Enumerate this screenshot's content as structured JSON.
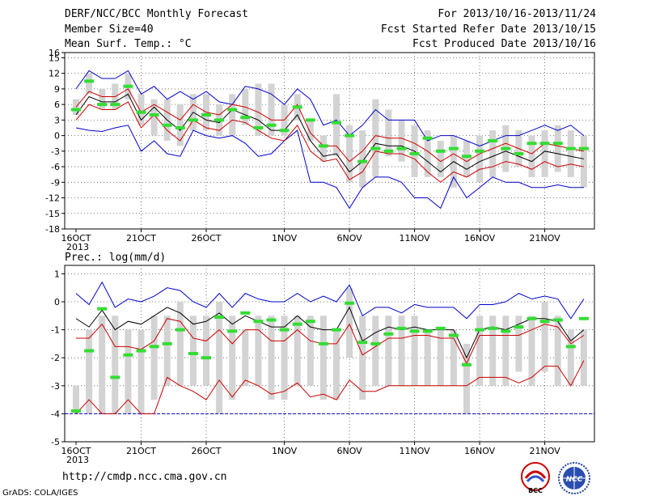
{
  "header": {
    "title": "DERF/NCC/BCC Monthly Forecast",
    "member_size": "Member Size=40",
    "period": "For 2013/10/16-2013/11/24",
    "fcst_started": "Fcst Started Refer Date 2013/10/15",
    "fcst_produced": "Fcst Produced Date 2013/10/16"
  },
  "footer": {
    "url": "http://cmdp.ncc.cma.gov.cn",
    "credit": "GrADS: COLA/IGES",
    "logo_left_text": "BCC",
    "logo_right_text": "NCC"
  },
  "colors": {
    "box": "#d3d3d3",
    "mean": "#000000",
    "upper": "#0000cc",
    "red": "#cc0000",
    "obs": "#33dd33",
    "zero_line": "#0000cc",
    "grid": "#555555"
  },
  "chart_data": [
    {
      "type": "box-line",
      "title": "Mean Surf. Temp.: °C",
      "ylim": [
        -18,
        16
      ],
      "yticks": [
        16,
        15,
        12,
        9,
        6,
        3,
        0,
        -3,
        -6,
        -9,
        -12,
        -15,
        -18
      ],
      "ytick_labels": [
        "16",
        "15",
        "12",
        "9",
        "6",
        "3",
        "0",
        "-3",
        "-6",
        "-9",
        "-12",
        "-15",
        "-18"
      ],
      "xticks": [
        {
          "day": 0,
          "label": "16OCT"
        },
        {
          "day": 5,
          "label": "21OCT"
        },
        {
          "day": 10,
          "label": "26OCT"
        },
        {
          "day": 16,
          "label": "1NOV"
        },
        {
          "day": 21,
          "label": "6NOV"
        },
        {
          "day": 26,
          "label": "11NOV"
        },
        {
          "day": 31,
          "label": "16NOV"
        },
        {
          "day": 36,
          "label": "21NOV"
        }
      ],
      "year_label": "2013",
      "grid": true,
      "days": [
        0,
        1,
        2,
        3,
        4,
        5,
        6,
        7,
        8,
        9,
        10,
        11,
        12,
        13,
        14,
        15,
        16,
        17,
        18,
        19,
        20,
        21,
        22,
        23,
        24,
        25,
        26,
        27,
        28,
        29,
        30,
        31,
        32,
        33,
        34,
        35,
        36,
        37,
        38,
        39
      ],
      "box_low": [
        4,
        8,
        5,
        5,
        7,
        2,
        0,
        -1,
        -2,
        1,
        1,
        0,
        0,
        2,
        0,
        0,
        0,
        3,
        -1,
        -5,
        -4,
        -9,
        -10,
        -8,
        -4,
        -5,
        -8,
        -8,
        -8,
        -10,
        -8,
        -9,
        -8,
        -7,
        -6,
        -8,
        -8,
        -7,
        -8,
        -10
      ],
      "box_high": [
        7,
        12,
        9,
        10,
        12,
        8,
        7,
        7,
        6,
        8,
        8,
        6,
        8,
        9,
        10,
        10,
        6,
        8,
        3,
        0,
        8,
        2,
        1,
        7,
        5,
        3,
        2,
        1,
        -1,
        0,
        -1,
        0,
        1,
        2,
        1,
        0,
        1,
        2,
        1,
        0
      ],
      "upper": [
        1.5,
        1,
        0.8,
        1.5,
        2,
        -3,
        -1,
        -3.5,
        -4,
        1,
        0,
        -0.5,
        0,
        -1.5,
        -4,
        -3.5,
        -1,
        1,
        -9,
        -9,
        -10,
        -14,
        -10,
        -8,
        -8,
        -9,
        -12,
        -12,
        -14,
        -8,
        -12,
        -10,
        -8,
        -9,
        -9,
        -10,
        -10,
        -9.5,
        -10,
        -10
      ],
      "hi_upper": [
        9,
        12.5,
        11,
        11,
        12.5,
        8,
        9.5,
        7,
        8.5,
        7,
        8.5,
        6.5,
        6,
        9.5,
        9,
        8,
        6,
        9,
        7,
        2,
        3,
        0,
        2,
        5,
        3,
        3,
        3,
        -1,
        0,
        0,
        -1,
        -2,
        -1,
        0,
        0,
        1,
        2,
        1,
        2,
        0
      ],
      "mean": [
        4,
        7.5,
        6.5,
        6.5,
        8,
        3,
        5.5,
        3,
        1,
        4.5,
        3,
        2.5,
        5,
        4,
        3,
        1,
        1,
        4,
        -1,
        -4,
        -3.5,
        -7,
        -5,
        -1.5,
        -2,
        -2,
        -3,
        -5,
        -7,
        -5,
        -6.5,
        -5,
        -4,
        -3,
        -4,
        -5,
        -3,
        -3.5,
        -4,
        -4.5
      ],
      "red_upper": [
        5.5,
        8.5,
        7.5,
        7.5,
        9,
        4.5,
        6,
        4.5,
        3,
        6,
        4.5,
        4,
        6,
        5.5,
        4.5,
        3,
        3,
        6,
        0.5,
        -2,
        -2,
        -5,
        -3,
        0,
        -0.5,
        -0.5,
        -1.5,
        -3,
        -5,
        -3.5,
        -5,
        -3.5,
        -2.5,
        -1.5,
        -2.5,
        -3.5,
        -1.5,
        -2,
        -2.5,
        -3
      ],
      "red_lower": [
        3,
        6,
        5,
        5,
        6.5,
        1.5,
        4,
        1,
        -1,
        3,
        1.5,
        1,
        3,
        2.5,
        1,
        -0.5,
        -1,
        2,
        -3,
        -5,
        -4.5,
        -8.5,
        -7,
        -3,
        -3.5,
        -3.5,
        -4.5,
        -7,
        -9,
        -7,
        -8,
        -6.5,
        -6,
        -5,
        -5.5,
        -6.5,
        -5,
        -6,
        -5.5,
        -6
      ],
      "obs": [
        5,
        10.5,
        6,
        6,
        9.5,
        4.5,
        4,
        2,
        1.5,
        3,
        4,
        3,
        5,
        3.5,
        1.5,
        2,
        1,
        5.5,
        3,
        -2,
        2.5,
        0,
        -5,
        -2.5,
        -3,
        -2.5,
        -3.5,
        -0.5,
        -3,
        -2.5,
        -4,
        -3,
        -1,
        -2.5,
        -3.5,
        -1.5,
        -1.5,
        -1.5,
        -2.5,
        -2.5
      ]
    },
    {
      "type": "box-line",
      "title": "Prec.: log(mm/d)",
      "ylim": [
        -5,
        1.3
      ],
      "yticks": [
        1,
        0,
        -1,
        -2,
        -3,
        -4,
        -5
      ],
      "ytick_labels": [
        "1",
        "0",
        "-1",
        "-2",
        "-3",
        "-4",
        "-5"
      ],
      "xticks": [
        {
          "day": 0,
          "label": "16OCT"
        },
        {
          "day": 5,
          "label": "21OCT"
        },
        {
          "day": 10,
          "label": "26OCT"
        },
        {
          "day": 16,
          "label": "1NOV"
        },
        {
          "day": 21,
          "label": "6NOV"
        },
        {
          "day": 26,
          "label": "11NOV"
        },
        {
          "day": 31,
          "label": "16NOV"
        },
        {
          "day": 36,
          "label": "21NOV"
        }
      ],
      "year_label": "2013",
      "grid": true,
      "zero_level": -4,
      "days": [
        0,
        1,
        2,
        3,
        4,
        5,
        6,
        7,
        8,
        9,
        10,
        11,
        12,
        13,
        14,
        15,
        16,
        17,
        18,
        19,
        20,
        21,
        22,
        23,
        24,
        25,
        26,
        27,
        28,
        29,
        30,
        31,
        32,
        33,
        34,
        35,
        36,
        37,
        38,
        39
      ],
      "box_low": [
        -4,
        -4,
        -4,
        -4,
        -4,
        -4,
        -3.5,
        -3,
        -3,
        -3,
        -3,
        -4,
        -3.5,
        -3,
        -3,
        -3.5,
        -3.5,
        -3,
        -3,
        -3.5,
        -3.5,
        -2,
        -3.5,
        -3,
        -3,
        -3,
        -3,
        -3,
        -3,
        -3,
        -4,
        -3,
        -3,
        -3,
        -2.5,
        -3,
        -2.5,
        -3,
        -3,
        -3
      ],
      "box_high": [
        -3,
        -1,
        -0.5,
        -0.5,
        -1,
        -1,
        -0.5,
        -0.5,
        0,
        -0.5,
        -0.5,
        0,
        -0.5,
        -1,
        -0.5,
        -0.5,
        -0.5,
        -0.5,
        -0.5,
        -0.5,
        -1,
        0.5,
        -0.5,
        -0.5,
        -0.5,
        -0.5,
        -0.5,
        -1,
        -1,
        -1,
        -1.5,
        -0.5,
        -0.5,
        -0.5,
        -0.5,
        -0.5,
        0,
        -0.5,
        -1,
        -1
      ],
      "upper": [
        0.3,
        -0.1,
        0.7,
        -0.2,
        0.1,
        0,
        0.2,
        0.5,
        0.4,
        0,
        -0.2,
        0.3,
        -0.2,
        0.3,
        0.1,
        0,
        0,
        0.3,
        0,
        0.2,
        0,
        0.6,
        -0.5,
        -0.2,
        -0.2,
        -0.4,
        -0.1,
        -0.2,
        -0.2,
        -0.2,
        -0.6,
        -0.1,
        -0.1,
        0,
        0.3,
        0.1,
        0.2,
        0.1,
        -0.6,
        0.1
      ],
      "mean": [
        -0.6,
        -0.9,
        -0.3,
        -1,
        -0.7,
        -0.8,
        -0.5,
        -0.2,
        -0.4,
        -0.8,
        -0.7,
        -0.4,
        -0.8,
        -0.5,
        -0.7,
        -0.9,
        -0.9,
        -0.5,
        -0.9,
        -1,
        -1,
        -0.2,
        -1.4,
        -1.1,
        -0.9,
        -1,
        -0.9,
        -1,
        -1,
        -1,
        -2,
        -1,
        -0.9,
        -1,
        -0.8,
        -0.6,
        -0.6,
        -0.7,
        -1.4,
        -1
      ],
      "red_upper": [
        -1.3,
        -1.3,
        -0.8,
        -1.6,
        -1.6,
        -1.7,
        -1.4,
        -0.6,
        -0.7,
        -1.3,
        -1.4,
        -1,
        -1.5,
        -1,
        -1,
        -1.4,
        -1.4,
        -1,
        -1.4,
        -1.5,
        -1.5,
        -0.8,
        -1.9,
        -1.6,
        -1.3,
        -1.3,
        -1.2,
        -1.2,
        -1.3,
        -1.3,
        -2.2,
        -1.2,
        -1.2,
        -1.2,
        -1.2,
        -1,
        -0.8,
        -0.9,
        -1.5,
        -1.2
      ],
      "red_lower": [
        -4,
        -3.5,
        -4,
        -4,
        -3.5,
        -4,
        -4,
        -2.7,
        -3,
        -3.2,
        -3.5,
        -2.8,
        -3.4,
        -2.8,
        -3,
        -3.3,
        -3.2,
        -2.9,
        -3.4,
        -3.3,
        -3.5,
        -2.8,
        -3.2,
        -3.2,
        -3,
        -3,
        -3,
        -3,
        -3,
        -3,
        -3,
        -2.7,
        -2.7,
        -2.7,
        -2.9,
        -2.7,
        -2.3,
        -2.3,
        -3,
        -2.1
      ],
      "obs": [
        -3.9,
        -1.75,
        -0.25,
        -2.7,
        -1.9,
        -1.75,
        -1.6,
        -1.5,
        -1,
        -1.85,
        -2,
        -0.55,
        -1.05,
        -0.4,
        -0.7,
        -0.65,
        -1,
        -0.8,
        -0.7,
        -1.5,
        -1,
        -0.05,
        -1.45,
        -1.5,
        -1.15,
        -0.95,
        -1.05,
        -1.05,
        -0.95,
        -1.2,
        -2.25,
        -1,
        -0.95,
        -1.05,
        -0.9,
        -0.6,
        -0.7,
        -0.65,
        -1.6,
        -0.6
      ]
    }
  ]
}
